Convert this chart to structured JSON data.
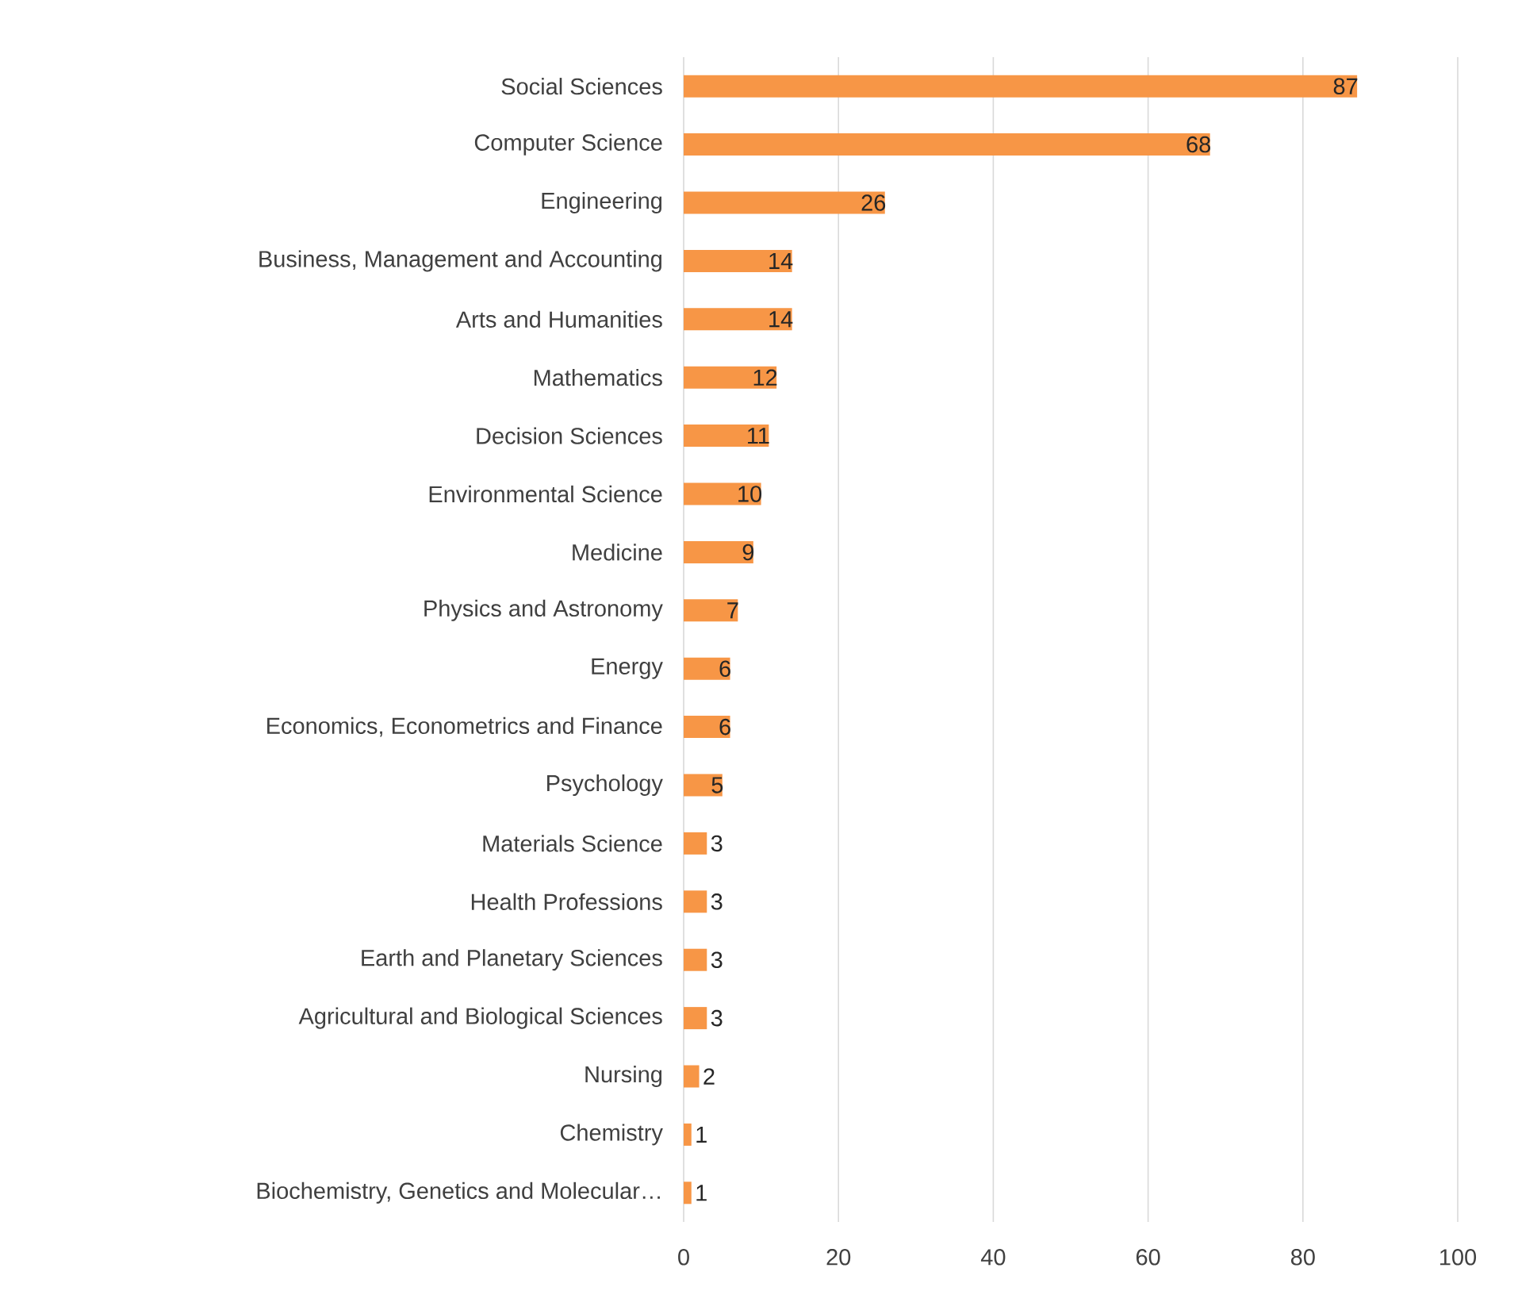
{
  "chart_data": {
    "type": "bar",
    "orientation": "horizontal",
    "categories": [
      "Social Sciences",
      "Computer Science",
      "Engineering",
      "Business, Management and Accounting",
      "Arts and Humanities",
      "Mathematics",
      "Decision Sciences",
      "Environmental Science",
      "Medicine",
      "Physics and Astronomy",
      "Energy",
      "Economics, Econometrics and Finance",
      "Psychology",
      "Materials Science",
      "Health Professions",
      "Earth and Planetary Sciences",
      "Agricultural and Biological Sciences",
      "Nursing",
      "Chemistry",
      "Biochemistry, Genetics and Molecular…"
    ],
    "values": [
      87,
      68,
      26,
      14,
      14,
      12,
      11,
      10,
      9,
      7,
      6,
      6,
      5,
      3,
      3,
      3,
      3,
      2,
      1,
      1
    ],
    "color": "#f79646",
    "xlim": [
      0,
      100
    ],
    "xticks": [
      0,
      20,
      40,
      60,
      80,
      100
    ],
    "grid": "x",
    "data_labels": true
  }
}
